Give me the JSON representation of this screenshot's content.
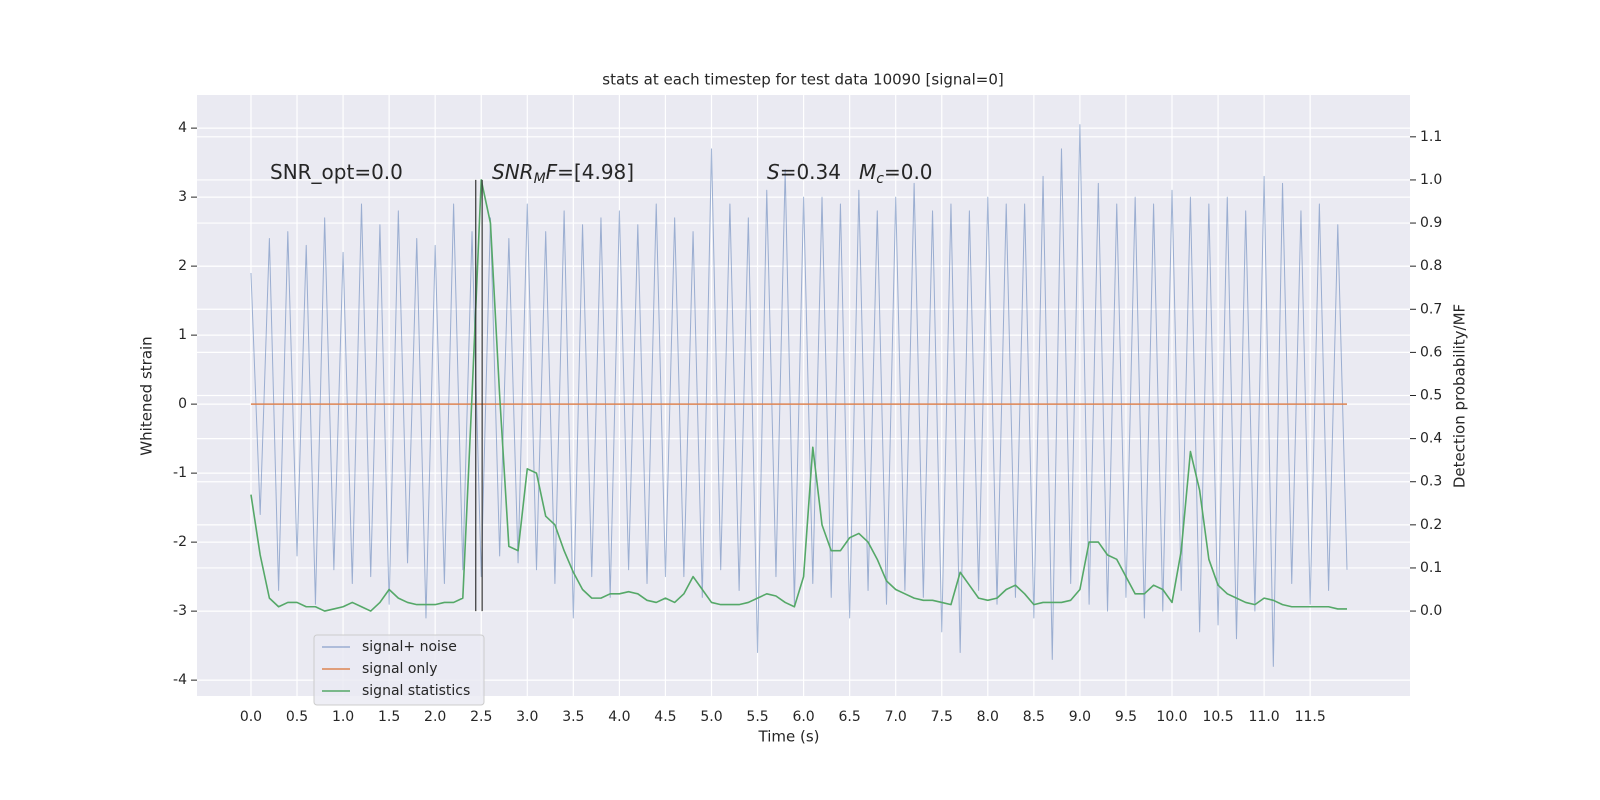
{
  "chart_data": {
    "type": "line",
    "title": "stats at each timestep for test data 10090 [signal=0]",
    "xlabel": "Time (s)",
    "ylabel": "Whitened strain",
    "y2label": "Detection probability/MF",
    "x": [
      0.0,
      0.1,
      0.2,
      0.3,
      0.4,
      0.5,
      0.6,
      0.7,
      0.8,
      0.9,
      1.0,
      1.1,
      1.2,
      1.3,
      1.4,
      1.5,
      1.6,
      1.7,
      1.8,
      1.9,
      2.0,
      2.1,
      2.2,
      2.3,
      2.4,
      2.5,
      2.6,
      2.7,
      2.8,
      2.9,
      3.0,
      3.1,
      3.2,
      3.3,
      3.4,
      3.5,
      3.6,
      3.7,
      3.8,
      3.9,
      4.0,
      4.1,
      4.2,
      4.3,
      4.4,
      4.5,
      4.6,
      4.7,
      4.8,
      4.9,
      5.0,
      5.1,
      5.2,
      5.3,
      5.4,
      5.5,
      5.6,
      5.7,
      5.8,
      5.9,
      6.0,
      6.1,
      6.2,
      6.3,
      6.4,
      6.5,
      6.6,
      6.7,
      6.8,
      6.9,
      7.0,
      7.1,
      7.2,
      7.3,
      7.4,
      7.5,
      7.6,
      7.7,
      7.8,
      7.9,
      8.0,
      8.1,
      8.2,
      8.3,
      8.4,
      8.5,
      8.6,
      8.7,
      8.8,
      8.9,
      9.0,
      9.1,
      9.2,
      9.3,
      9.4,
      9.5,
      9.6,
      9.7,
      9.8,
      9.9,
      10.0,
      10.1,
      10.2,
      10.3,
      10.4,
      10.5,
      10.6,
      10.7,
      10.8,
      10.9,
      11.0,
      11.1,
      11.2,
      11.3,
      11.4,
      11.5,
      11.6,
      11.7,
      11.8,
      11.9
    ],
    "series": [
      {
        "name": "signal+ noise",
        "color": "#4c72b0",
        "opacity": 0.5,
        "axis": "y",
        "values": [
          1.9,
          -1.6,
          2.4,
          -2.7,
          2.5,
          -2.2,
          2.3,
          -2.9,
          2.7,
          -2.4,
          2.2,
          -2.6,
          2.9,
          -2.5,
          2.6,
          -2.9,
          2.8,
          -2.3,
          2.4,
          -3.1,
          2.3,
          -2.6,
          2.9,
          -2.4,
          2.5,
          -2.5,
          2.7,
          -2.2,
          2.4,
          -2.3,
          2.9,
          -2.4,
          2.5,
          -2.6,
          2.8,
          -3.1,
          2.6,
          -2.5,
          2.7,
          -2.8,
          2.8,
          -2.4,
          2.6,
          -2.6,
          2.9,
          -2.5,
          2.7,
          -2.5,
          2.5,
          -2.8,
          3.7,
          -2.4,
          2.9,
          -2.7,
          2.7,
          -3.6,
          3.1,
          -2.5,
          3.4,
          -2.9,
          3.0,
          -2.6,
          3.0,
          -2.8,
          2.9,
          -3.1,
          3.1,
          -2.7,
          2.8,
          -2.9,
          3.0,
          -2.7,
          3.2,
          -2.8,
          2.8,
          -3.3,
          2.9,
          -3.6,
          2.8,
          -2.7,
          3.0,
          -2.9,
          2.9,
          -2.8,
          2.9,
          -3.1,
          3.3,
          -3.7,
          3.7,
          -2.6,
          4.05,
          -2.9,
          3.2,
          -3.0,
          2.9,
          -2.8,
          3.0,
          -3.1,
          2.9,
          -3.0,
          3.1,
          -2.7,
          3.0,
          -3.3,
          2.9,
          -3.2,
          3.0,
          -3.4,
          2.8,
          -3.0,
          3.3,
          -3.8,
          3.2,
          -2.6,
          2.8,
          -2.9,
          2.9,
          -2.7,
          2.6,
          -2.4
        ]
      },
      {
        "name": "signal only",
        "color": "#dd8452",
        "opacity": 1,
        "axis": "y",
        "values": [
          0,
          0,
          0,
          0,
          0,
          0,
          0,
          0,
          0,
          0,
          0,
          0,
          0,
          0,
          0,
          0,
          0,
          0,
          0,
          0,
          0,
          0,
          0,
          0,
          0,
          0,
          0,
          0,
          0,
          0,
          0,
          0,
          0,
          0,
          0,
          0,
          0,
          0,
          0,
          0,
          0,
          0,
          0,
          0,
          0,
          0,
          0,
          0,
          0,
          0,
          0,
          0,
          0,
          0,
          0,
          0,
          0,
          0,
          0,
          0,
          0,
          0,
          0,
          0,
          0,
          0,
          0,
          0,
          0,
          0,
          0,
          0,
          0,
          0,
          0,
          0,
          0,
          0,
          0,
          0,
          0,
          0,
          0,
          0,
          0,
          0,
          0,
          0,
          0,
          0,
          0,
          0,
          0,
          0,
          0,
          0,
          0,
          0,
          0,
          0,
          0,
          0,
          0,
          0,
          0,
          0,
          0,
          0,
          0,
          0,
          0,
          0,
          0,
          0,
          0,
          0,
          0,
          0,
          0,
          0
        ]
      },
      {
        "name": "signal statistics",
        "color": "#55a868",
        "opacity": 1,
        "axis": "y2",
        "values": [
          0.27,
          0.13,
          0.03,
          0.01,
          0.02,
          0.02,
          0.01,
          0.01,
          0.0,
          0.005,
          0.01,
          0.02,
          0.01,
          0.0,
          0.02,
          0.05,
          0.03,
          0.02,
          0.015,
          0.015,
          0.015,
          0.02,
          0.02,
          0.03,
          0.5,
          1.0,
          0.9,
          0.5,
          0.15,
          0.14,
          0.33,
          0.32,
          0.22,
          0.2,
          0.14,
          0.09,
          0.05,
          0.03,
          0.03,
          0.04,
          0.04,
          0.045,
          0.04,
          0.025,
          0.02,
          0.03,
          0.02,
          0.04,
          0.08,
          0.05,
          0.02,
          0.015,
          0.015,
          0.015,
          0.02,
          0.03,
          0.04,
          0.035,
          0.02,
          0.01,
          0.08,
          0.38,
          0.2,
          0.14,
          0.14,
          0.17,
          0.18,
          0.16,
          0.12,
          0.07,
          0.05,
          0.04,
          0.03,
          0.025,
          0.025,
          0.02,
          0.015,
          0.09,
          0.06,
          0.03,
          0.025,
          0.03,
          0.05,
          0.06,
          0.04,
          0.015,
          0.02,
          0.02,
          0.02,
          0.025,
          0.05,
          0.16,
          0.16,
          0.13,
          0.12,
          0.08,
          0.04,
          0.04,
          0.06,
          0.05,
          0.02,
          0.14,
          0.37,
          0.28,
          0.12,
          0.06,
          0.04,
          0.03,
          0.02,
          0.015,
          0.03,
          0.025,
          0.015,
          0.01,
          0.01,
          0.01,
          0.01,
          0.01,
          0.005,
          0.005
        ]
      }
    ],
    "vlines": {
      "x": [
        2.44,
        2.51
      ],
      "ymin": -3,
      "ymax": 3.25,
      "color": "#333333"
    },
    "annotations": [
      [
        {
          "text": "SNR_opt=0.0"
        }
      ],
      [
        {
          "text": "SNR",
          "italic": true
        },
        {
          "text": "M",
          "italic": true,
          "sub": true
        },
        {
          "text": "F",
          "italic": true
        },
        {
          "text": "=[4.98]"
        }
      ],
      [
        {
          "text": "S",
          "italic": true
        },
        {
          "text": "=0.34"
        }
      ],
      [
        {
          "text": "M",
          "italic": true
        },
        {
          "text": "c",
          "italic": true,
          "sub": true
        },
        {
          "text": "=0.0"
        }
      ]
    ],
    "xlim": [
      -0.586,
      12.584
    ],
    "ylim": [
      -4.23,
      4.48
    ],
    "y2lim": [
      -0.197,
      1.197
    ],
    "xticks": [
      {
        "value": 0,
        "label": "0.0"
      },
      0.5,
      {
        "value": 1,
        "label": "1.0"
      },
      1.5,
      {
        "value": 2,
        "label": "2.0"
      },
      2.5,
      {
        "value": 3,
        "label": "3.0"
      },
      3.5,
      {
        "value": 4,
        "label": "4.0"
      },
      4.5,
      {
        "value": 5,
        "label": "5.0"
      },
      5.5,
      {
        "value": 6,
        "label": "6.0"
      },
      6.5,
      {
        "value": 7,
        "label": "7.0"
      },
      7.5,
      {
        "value": 8,
        "label": "8.0"
      },
      8.5,
      {
        "value": 9,
        "label": "9.0"
      },
      9.5,
      {
        "value": 10,
        "label": "10.0"
      },
      10.5,
      {
        "value": 11,
        "label": "11.0"
      },
      11.5
    ],
    "yticks": [
      -4,
      -3,
      -2,
      -1,
      0,
      1,
      2,
      3,
      4
    ],
    "y2ticks": [
      {
        "value": 0,
        "label": "0.0"
      },
      0.1,
      0.2,
      0.3,
      0.4,
      0.5,
      0.6,
      0.7,
      0.8,
      0.9,
      {
        "value": 1,
        "label": "1.0"
      },
      1.1
    ],
    "grid": true,
    "legend": "lower left"
  }
}
